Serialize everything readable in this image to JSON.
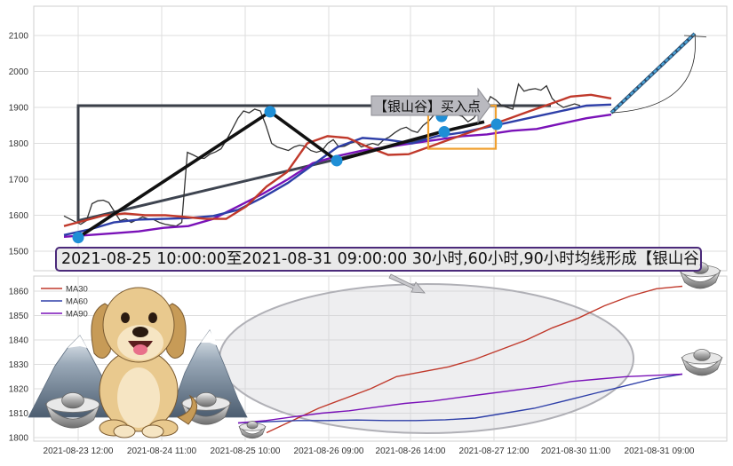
{
  "banner": "2021-08-25 10:00:00至2021-08-31 09:00:00 30小时,60小时,90小时均线形成【银山谷】买入点",
  "callout": "【银山谷】买入点",
  "colors": {
    "price": "#333333",
    "trend": "#111111",
    "ma30": "#c0392b",
    "ma60": "#2e3fa8",
    "ma90": "#7a12b8",
    "marker": "#1f8fd6",
    "highlight": "#f0a030",
    "projection": "#4aa3d8"
  },
  "chart_data": [
    {
      "type": "line",
      "x_ticks": [
        "2021-08-23 12:00",
        "2021-08-24 11:00",
        "2021-08-25 10:00",
        "2021-08-26 09:00",
        "2021-08-26 14:00",
        "2021-08-27 12:00",
        "2021-08-30 11:00",
        "2021-08-31 09:00"
      ],
      "y_ticks": [
        1500,
        1600,
        1700,
        1800,
        1900,
        2000,
        2100
      ],
      "ylim": [
        1470,
        2130
      ],
      "legend": "none",
      "series": [
        {
          "key": "price",
          "values": [
            1598,
            1590,
            1582,
            1575,
            1585,
            1632,
            1640,
            1642,
            1635,
            1610,
            1585,
            1590,
            1580,
            1588,
            1595,
            1590,
            1588,
            1580,
            1575,
            1572,
            1570,
            1580,
            1775,
            1768,
            1760,
            1758,
            1770,
            1776,
            1785,
            1810,
            1840,
            1870,
            1890,
            1885,
            1895,
            1890,
            1850,
            1800,
            1790,
            1785,
            1780,
            1790,
            1795,
            1792,
            1780,
            1775,
            1780,
            1800,
            1810,
            1790,
            1792,
            1800,
            1805,
            1790,
            1795,
            1800,
            1795,
            1810,
            1818,
            1830,
            1840,
            1845,
            1835,
            1830,
            1850,
            1862,
            1880,
            1885,
            1870,
            1890,
            1880,
            1875,
            1860,
            1870,
            1890,
            1895,
            1930,
            1920,
            1905,
            1900,
            1895,
            1965,
            1945,
            1950,
            1952,
            1948,
            1960,
            1925,
            1910,
            1900,
            1905,
            1910,
            1905
          ]
        },
        {
          "key": "ma30",
          "values": [
            1570,
            1585,
            1600,
            1605,
            1600,
            1600,
            1595,
            1590,
            1590,
            1625,
            1680,
            1720,
            1800,
            1820,
            1815,
            1790,
            1768,
            1770,
            1790,
            1810,
            1830,
            1850,
            1870,
            1890,
            1910,
            1930,
            1935,
            1925
          ]
        },
        {
          "key": "ma60",
          "values": [
            1545,
            1560,
            1580,
            1588,
            1590,
            1592,
            1598,
            1615,
            1650,
            1690,
            1740,
            1790,
            1815,
            1810,
            1800,
            1820,
            1830,
            1845,
            1860,
            1875,
            1890,
            1905,
            1908
          ]
        },
        {
          "key": "ma90",
          "values": [
            1540,
            1545,
            1550,
            1555,
            1565,
            1570,
            1590,
            1625,
            1660,
            1700,
            1745,
            1765,
            1780,
            1790,
            1800,
            1810,
            1820,
            1825,
            1835,
            1840,
            1855,
            1870,
            1880
          ]
        }
      ],
      "trend_points": [
        1538,
        1888,
        1752,
        1832,
        1860
      ],
      "markers": [
        1538,
        1888,
        1752,
        1875,
        1832,
        1853
      ],
      "box_levels": [
        1580,
        1905
      ],
      "highlight_box": [
        1785,
        1905
      ],
      "projection": [
        1885,
        2105
      ]
    },
    {
      "type": "line",
      "y_ticks": [
        1800,
        1810,
        1820,
        1830,
        1840,
        1850,
        1860
      ],
      "ylim": [
        1798,
        1866
      ],
      "legend": "top-left",
      "series": [
        {
          "key": "ma30",
          "name": "MA30",
          "values": [
            1802,
            1807,
            1812,
            1816,
            1820,
            1825,
            1827,
            1829,
            1832,
            1836,
            1840,
            1845,
            1849,
            1854,
            1858,
            1861,
            1862
          ]
        },
        {
          "key": "ma60",
          "name": "MA60",
          "values": [
            1806,
            1806.5,
            1807,
            1807,
            1807.2,
            1807,
            1807,
            1807.3,
            1808,
            1810,
            1812,
            1815,
            1818,
            1821,
            1824,
            1826
          ]
        },
        {
          "key": "ma90",
          "name": "MA90",
          "values": [
            1806,
            1807,
            1808.5,
            1810,
            1811,
            1812.5,
            1814,
            1815,
            1816.5,
            1818,
            1819.5,
            1821,
            1823,
            1824,
            1825,
            1825.5,
            1826
          ]
        }
      ]
    }
  ]
}
